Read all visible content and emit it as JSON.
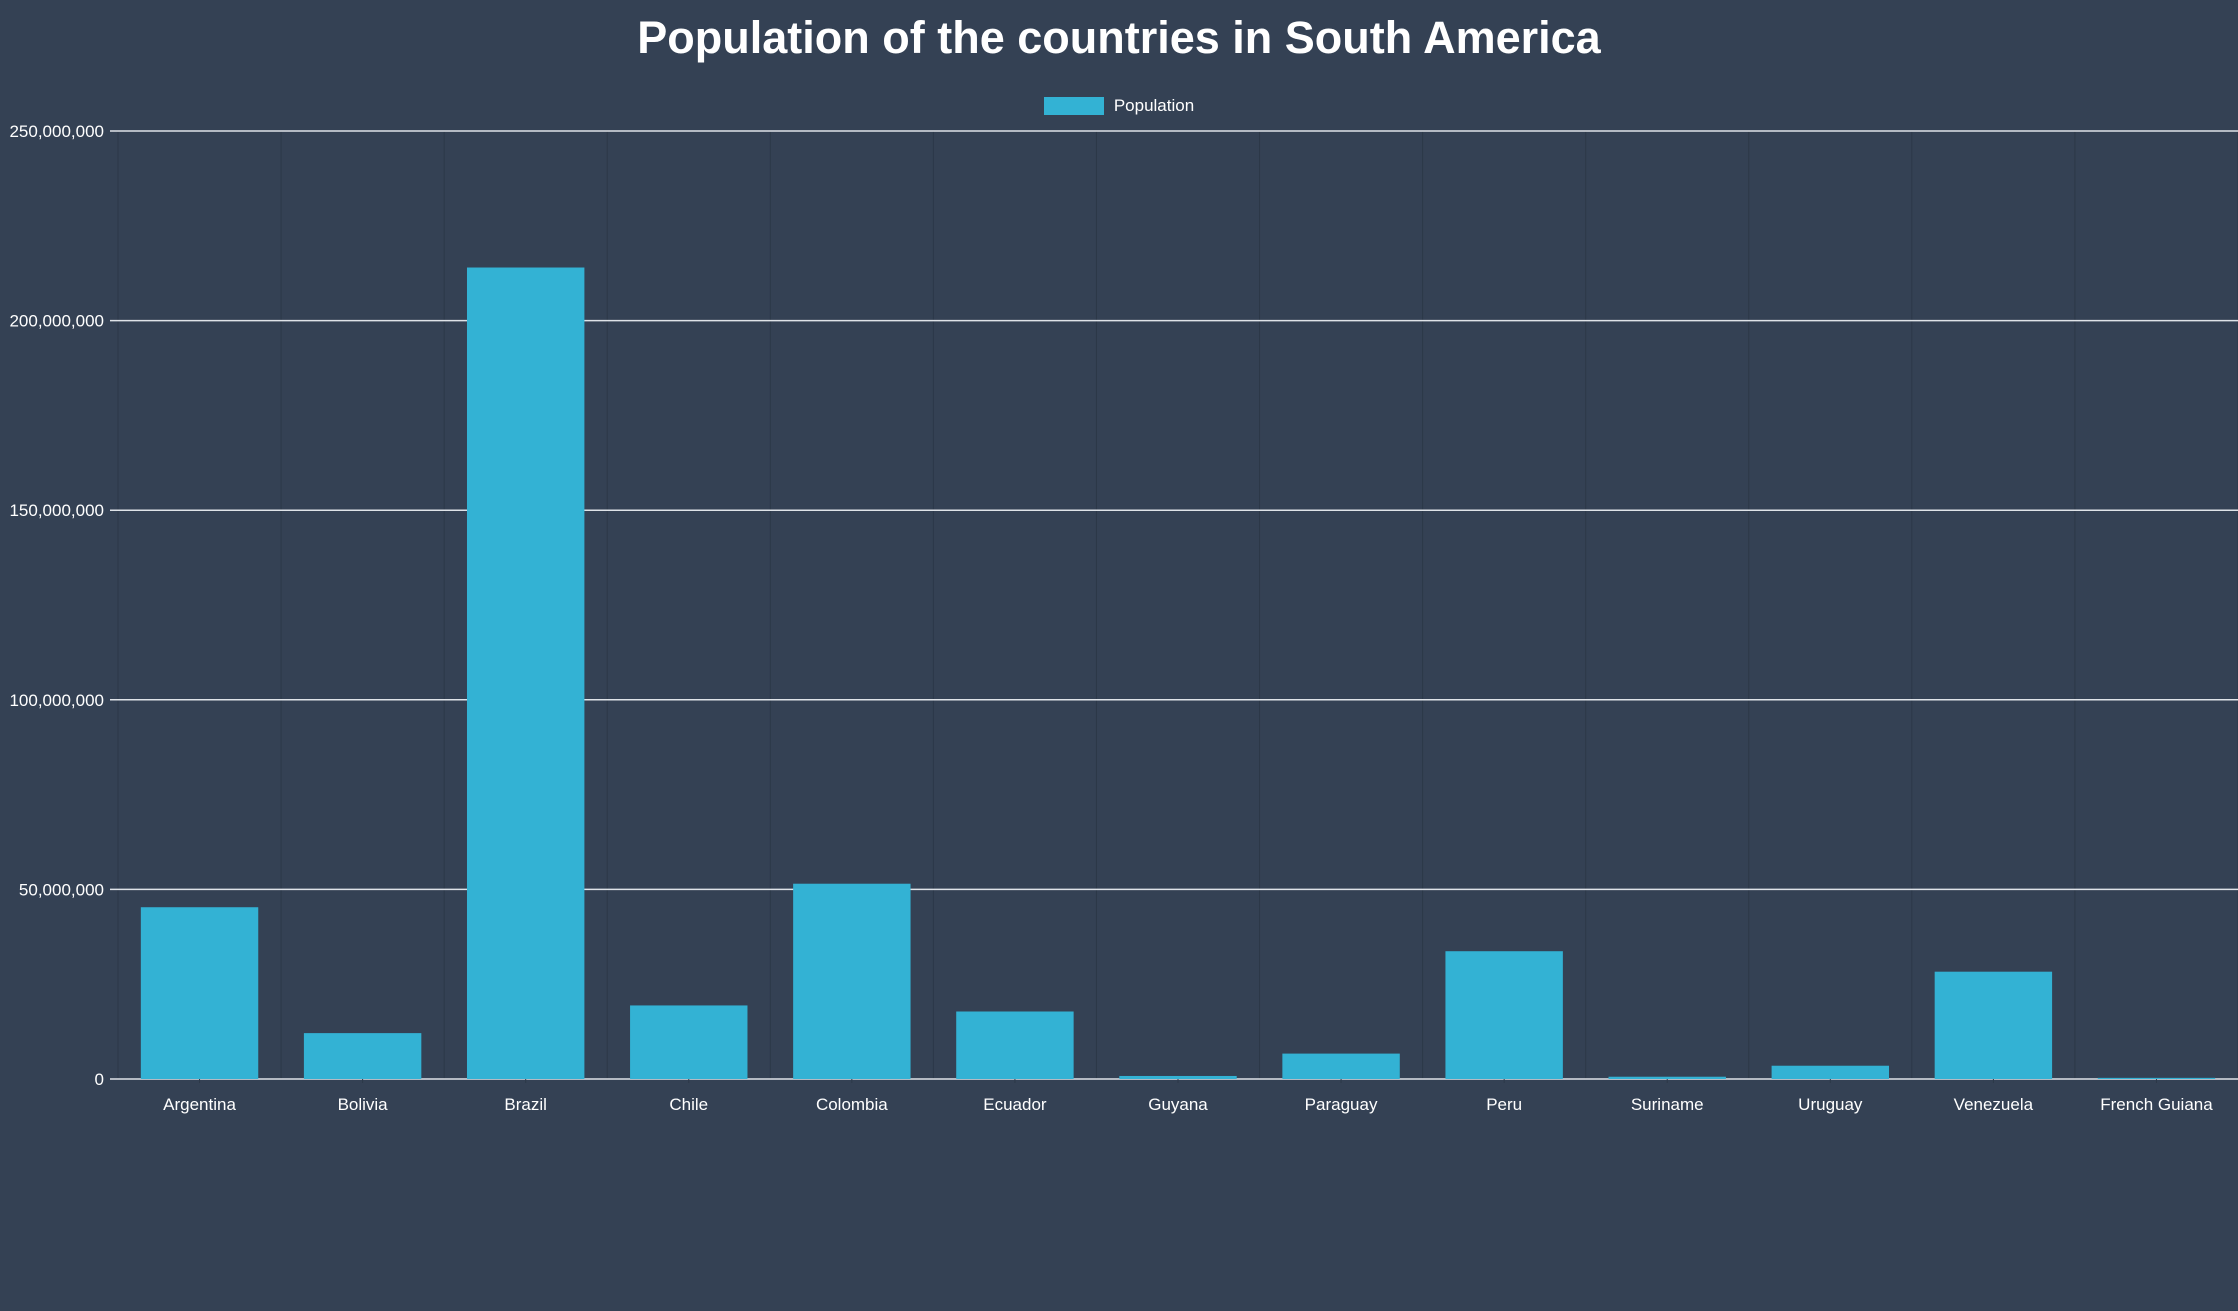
{
  "chart_data": {
    "type": "bar",
    "title": "Population of the countries in South America",
    "xlabel": "",
    "ylabel": "",
    "ylim": [
      0,
      250000000
    ],
    "yticks": [
      0,
      50000000,
      100000000,
      150000000,
      200000000,
      250000000
    ],
    "ytick_labels": [
      "0",
      "50,000,000",
      "100,000,000",
      "150,000,000",
      "200,000,000",
      "250,000,000"
    ],
    "categories": [
      "Argentina",
      "Bolivia",
      "Brazil",
      "Chile",
      "Colombia",
      "Ecuador",
      "Guyana",
      "Paraguay",
      "Peru",
      "Suriname",
      "Uruguay",
      "Venezuela",
      "French Guiana"
    ],
    "series": [
      {
        "name": "Population",
        "color": "#33b2d4",
        "values": [
          45300000,
          12100000,
          214000000,
          19400000,
          51500000,
          17800000,
          800000,
          6700000,
          33700000,
          600000,
          3500000,
          28300000,
          300000
        ]
      }
    ],
    "legend": "top-center",
    "grid": true,
    "colors": {
      "background": "#344154",
      "bar": "#33b2d4",
      "gridline": "#dfe3e8",
      "text": "#ffffff"
    }
  }
}
